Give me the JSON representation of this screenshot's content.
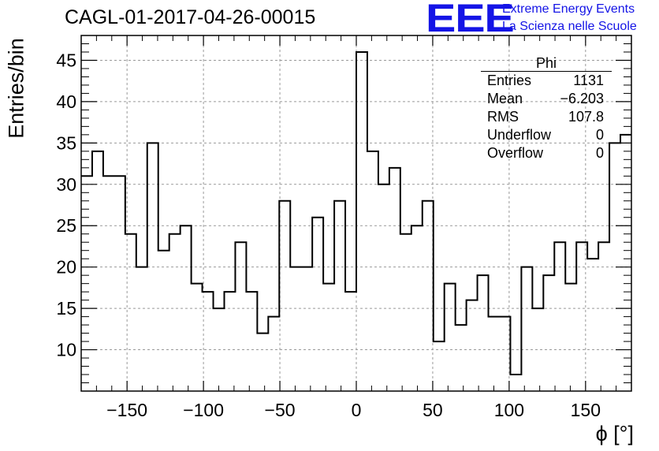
{
  "header": {
    "title": "CAGL-01-2017-04-26-00015",
    "logo_text": "EEE",
    "logo_line1": "Extreme Energy Events",
    "logo_line2": "La Scienza nelle Scuole"
  },
  "stats_box": {
    "name": "Phi",
    "rows": [
      {
        "label": "Entries",
        "value": "1131"
      },
      {
        "label": "Mean",
        "value": "−6.203"
      },
      {
        "label": "RMS",
        "value": "107.8"
      },
      {
        "label": "Underflow",
        "value": "0"
      },
      {
        "label": "Overflow",
        "value": "0"
      }
    ]
  },
  "chart_data": {
    "type": "bar",
    "title": "CAGL-01-2017-04-26-00015",
    "xlabel": "ϕ [°]",
    "ylabel": "Entries/bin",
    "xlim": [
      -180,
      180
    ],
    "ylim": [
      5,
      48
    ],
    "bin_width": 7.2,
    "x_ticks": [
      -150,
      -100,
      -50,
      0,
      50,
      100,
      150
    ],
    "x_tick_labels": [
      "−150",
      "−100",
      "−50",
      "0",
      "50",
      "100",
      "150"
    ],
    "y_ticks": [
      10,
      15,
      20,
      25,
      30,
      35,
      40,
      45
    ],
    "y_tick_labels": [
      "10",
      "15",
      "20",
      "25",
      "30",
      "35",
      "40",
      "45"
    ],
    "grid": true,
    "values": [
      31,
      34,
      31,
      31,
      24,
      20,
      35,
      22,
      24,
      25,
      18,
      17,
      15,
      17,
      23,
      17,
      12,
      14,
      28,
      20,
      20,
      26,
      18,
      28,
      17,
      46,
      34,
      30,
      32,
      24,
      25,
      28,
      11,
      18,
      13,
      16,
      19,
      14,
      14,
      7,
      20,
      15,
      19,
      23,
      18,
      23,
      21,
      23,
      35,
      36
    ],
    "line_color": "#000000",
    "grid_color": "#999999"
  }
}
